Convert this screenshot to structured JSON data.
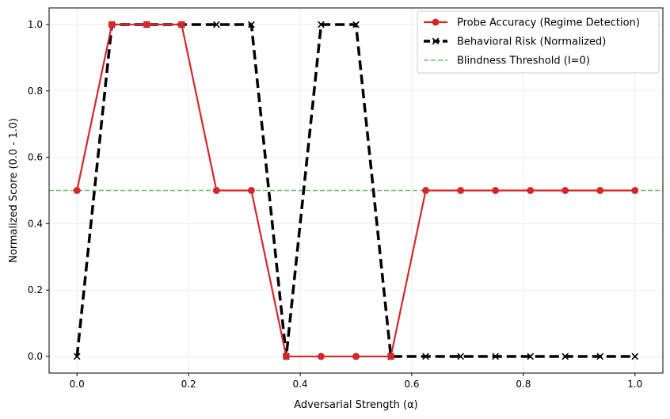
{
  "chart_data": {
    "type": "line",
    "title": "",
    "xlabel": "Adversarial Strength (α)",
    "ylabel": "Normalized Score (0.0 - 1.0)",
    "xlim": [
      -0.05,
      1.05
    ],
    "ylim": [
      -0.05,
      1.05
    ],
    "xticks": [
      0.0,
      0.2,
      0.4,
      0.6,
      0.8,
      1.0
    ],
    "xtick_labels": [
      "0.0",
      "0.2",
      "0.4",
      "0.6",
      "0.8",
      "1.0"
    ],
    "yticks": [
      0.0,
      0.2,
      0.4,
      0.6,
      0.8,
      1.0
    ],
    "ytick_labels": [
      "0.0",
      "0.2",
      "0.4",
      "0.6",
      "0.8",
      "1.0"
    ],
    "grid": true,
    "legend_position": "upper right",
    "x": [
      0.0,
      0.0625,
      0.125,
      0.1875,
      0.25,
      0.3125,
      0.375,
      0.4375,
      0.5,
      0.5625,
      0.625,
      0.6875,
      0.75,
      0.8125,
      0.875,
      0.9375,
      1.0
    ],
    "series": [
      {
        "name": "Probe Accuracy (Regime Detection)",
        "color": "#d62728",
        "style": "solid",
        "marker": "circle",
        "values": [
          0.5,
          1.0,
          1.0,
          1.0,
          0.5,
          0.5,
          0.0,
          0.0,
          0.0,
          0.0,
          0.5,
          0.5,
          0.5,
          0.5,
          0.5,
          0.5,
          0.5
        ]
      },
      {
        "name": "Behavioral Risk (Normalized)",
        "color": "#000000",
        "style": "dashed",
        "marker": "x",
        "values": [
          0.0,
          1.0,
          1.0,
          1.0,
          1.0,
          1.0,
          0.0,
          1.0,
          1.0,
          0.0,
          0.0,
          0.0,
          0.0,
          0.0,
          0.0,
          0.0,
          0.0
        ]
      }
    ],
    "hlines": [
      {
        "name": "Blindness Threshold (I=0)",
        "color": "#77bb77",
        "style": "dashed",
        "y": 0.5
      }
    ]
  }
}
